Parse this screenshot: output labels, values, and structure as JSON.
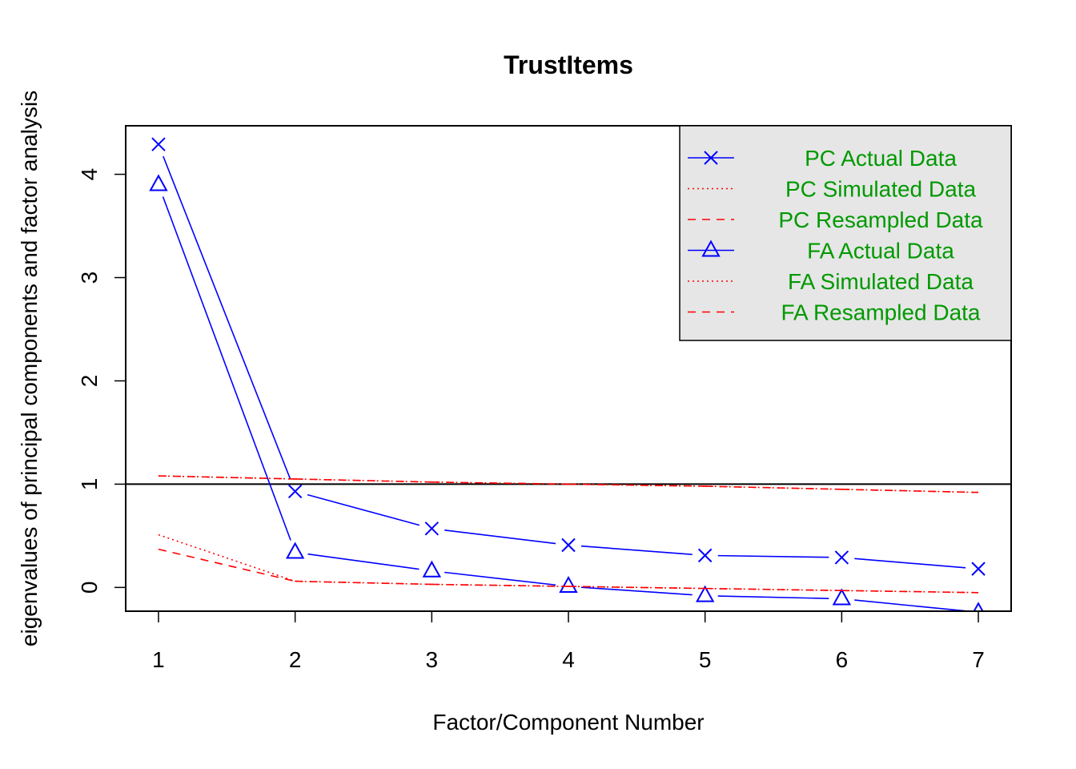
{
  "chart_data": {
    "type": "line",
    "title": "TrustItems",
    "xlabel": "Factor/Component Number",
    "ylabel": "eigenvalues of principal components and factor analysis",
    "x": [
      1,
      2,
      3,
      4,
      5,
      6,
      7
    ],
    "xlim": [
      0.76,
      7.24
    ],
    "ylim": [
      -0.23,
      4.47
    ],
    "xticks": [
      "1",
      "2",
      "3",
      "4",
      "5",
      "6",
      "7"
    ],
    "yticks": [
      "0",
      "1",
      "2",
      "3",
      "4"
    ],
    "reference_line": 1,
    "series": [
      {
        "name": "PC  Actual Data",
        "values": [
          4.29,
          0.93,
          0.57,
          0.41,
          0.31,
          0.29,
          0.18
        ],
        "color": "#0000ff",
        "dash": "solid",
        "marker": "x"
      },
      {
        "name": "PC  Simulated Data",
        "values": [
          1.08,
          1.05,
          1.02,
          1.0,
          0.98,
          0.95,
          0.92
        ],
        "color": "#ff0000",
        "dash": "dotted",
        "marker": "none"
      },
      {
        "name": "PC  Resampled Data",
        "values": [
          1.08,
          1.05,
          1.02,
          1.0,
          0.98,
          0.95,
          0.92
        ],
        "color": "#ff0000",
        "dash": "dashed",
        "marker": "none"
      },
      {
        "name": "FA  Actual Data",
        "values": [
          3.9,
          0.34,
          0.16,
          0.01,
          -0.08,
          -0.11,
          -0.24
        ],
        "color": "#0000ff",
        "dash": "solid",
        "marker": "triangle"
      },
      {
        "name": "FA  Simulated Data",
        "values": [
          0.51,
          0.06,
          0.03,
          0.01,
          -0.01,
          -0.03,
          -0.05
        ],
        "color": "#ff0000",
        "dash": "dotted",
        "marker": "none"
      },
      {
        "name": "FA  Resampled Data",
        "values": [
          0.37,
          0.06,
          0.03,
          0.01,
          -0.01,
          -0.03,
          -0.05
        ],
        "color": "#ff0000",
        "dash": "dashed",
        "marker": "none"
      }
    ],
    "legend_position": "top-right",
    "legend_background": "#e6e6e6",
    "legend_text_color": "#009900"
  }
}
